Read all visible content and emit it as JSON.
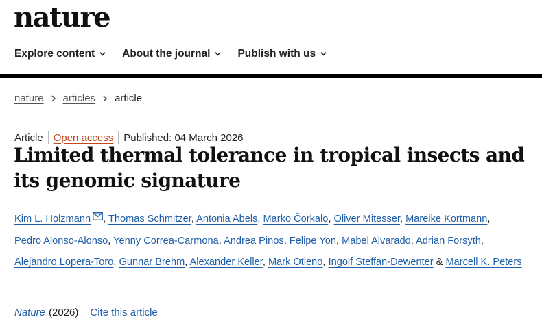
{
  "brand": {
    "logo": "nature"
  },
  "nav": {
    "items": [
      {
        "label": "Explore content"
      },
      {
        "label": "About the journal"
      },
      {
        "label": "Publish with us"
      }
    ]
  },
  "breadcrumb": {
    "items": [
      "nature",
      "articles",
      "article"
    ]
  },
  "article": {
    "type": "Article",
    "access": "Open access",
    "published": "Published: 04 March 2026",
    "title": "Limited thermal tolerance in tropical insects and its genomic signature",
    "authors": [
      "Kim L. Holzmann",
      "Thomas Schmitzer",
      "Antonia Abels",
      "Marko Čorkalo",
      "Oliver Mitesser",
      "Mareike Kortmann",
      "Pedro Alonso-Alonso",
      "Yenny Correa-Carmona",
      "Andrea Pinos",
      "Felipe Yon",
      "Mabel Alvarado",
      "Adrian Forsyth",
      "Alejandro Lopera-Toro",
      "Gunnar Brehm",
      "Alexander Keller",
      "Mark Otieno",
      "Ingolf Steffan-Dewenter",
      "Marcell K. Peters"
    ],
    "and_sep": "&",
    "journal": "Nature",
    "year": "(2026)",
    "cite_label": "Cite this article"
  },
  "colors": {
    "link": "#1f5fa8",
    "open_access": "#c3461c",
    "rule": "#000000"
  },
  "icons": {
    "chevron": "chevron-down-icon",
    "crumb": "chevron-right-icon",
    "mail": "mail-icon"
  }
}
